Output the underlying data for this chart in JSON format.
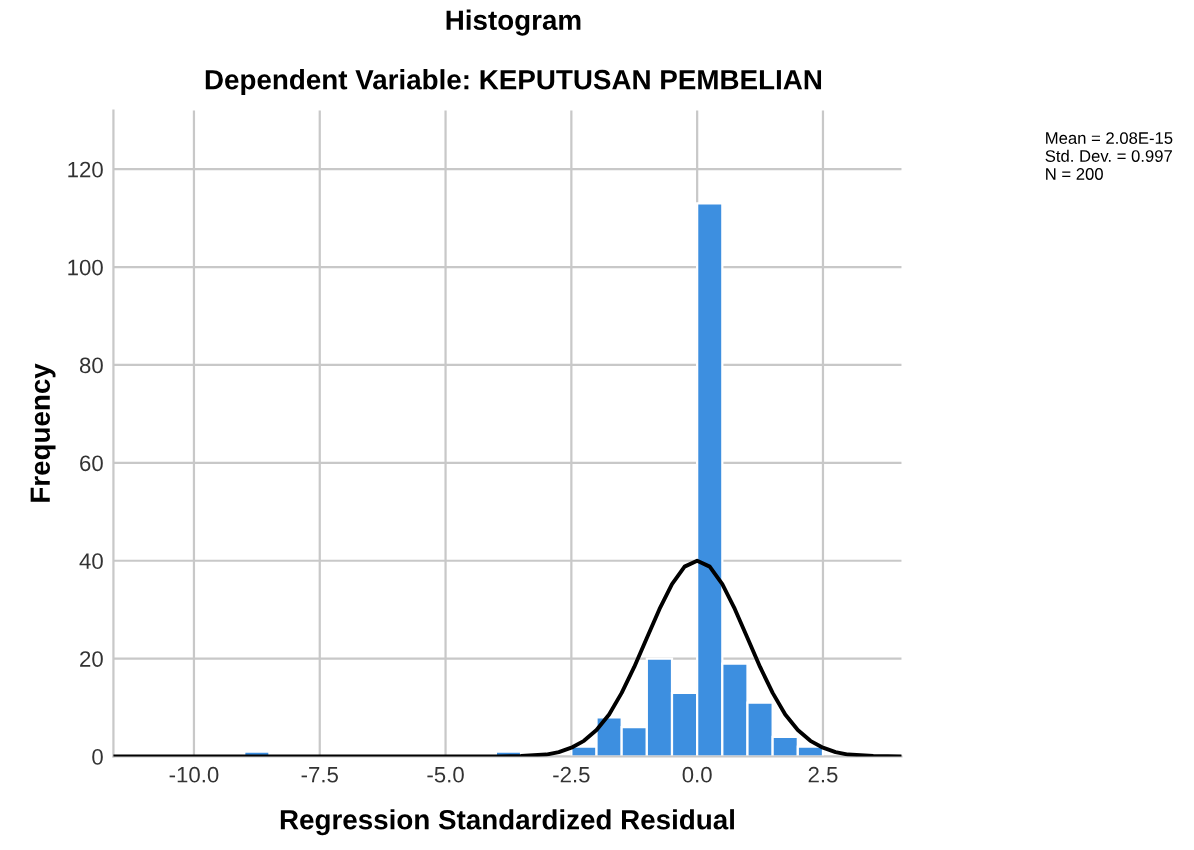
{
  "chart_data": {
    "type": "histogram",
    "title": "Histogram",
    "subtitle": "Dependent Variable: KEPUTUSAN PEMBELIAN",
    "xlabel": "Regression Standardized Residual",
    "ylabel": "Frequency",
    "bins": [
      -9.0,
      -8.5,
      -8.0,
      -7.5,
      -7.0,
      -6.5,
      -6.0,
      -5.5,
      -5.0,
      -4.5,
      -4.0,
      -3.5,
      -3.0,
      -2.5,
      -2.0,
      -1.5,
      -1.0,
      -0.5,
      0.0,
      0.5,
      1.0,
      1.5,
      2.0,
      2.5
    ],
    "values": [
      1,
      0,
      0,
      0,
      0,
      0,
      0,
      0,
      0,
      0,
      1,
      0,
      0,
      2,
      8,
      6,
      20,
      13,
      113,
      19,
      11,
      4,
      2
    ],
    "color": "#3d8fe0",
    "series": [
      {
        "type": "line",
        "color": "#000000",
        "x": [
          -11.6,
          -4.0,
          -3.5,
          -3.0,
          -2.75,
          -2.5,
          -2.25,
          -2.0,
          -1.75,
          -1.5,
          -1.25,
          -1.0,
          -0.75,
          -0.5,
          -0.25,
          0.0,
          0.25,
          0.5,
          0.75,
          1.0,
          1.25,
          1.5,
          1.75,
          2.0,
          2.25,
          2.5,
          2.75,
          3.0,
          3.5,
          4.06
        ],
        "values": [
          0,
          0,
          0.1,
          0.4,
          0.9,
          1.8,
          3.2,
          5.4,
          8.6,
          13,
          18.3,
          24.2,
          30.1,
          35.2,
          38.8,
          40,
          38.8,
          35.2,
          30.1,
          24.2,
          18.3,
          13,
          8.6,
          5.4,
          3.2,
          1.8,
          0.9,
          0.4,
          0.1,
          0
        ]
      }
    ],
    "annotations": [
      "Mean = 2.08E-15\nStd. Dev. = 0.997\nN = 200"
    ],
    "xlim": [
      -11.6,
      4.06
    ],
    "ylim": [
      0,
      132
    ],
    "xticks": [
      {
        "value": -10,
        "label": "-10.0"
      },
      {
        "value": -7.5,
        "label": "-7.5"
      },
      {
        "value": -5,
        "label": "-5.0"
      },
      {
        "value": -2.5,
        "label": "-2.5"
      },
      {
        "value": 0,
        "label": "0.0"
      },
      {
        "value": 2.5,
        "label": "2.5"
      }
    ],
    "yticks": [
      0,
      20,
      40,
      60,
      80,
      100,
      120
    ],
    "grid": true,
    "legend": false
  }
}
